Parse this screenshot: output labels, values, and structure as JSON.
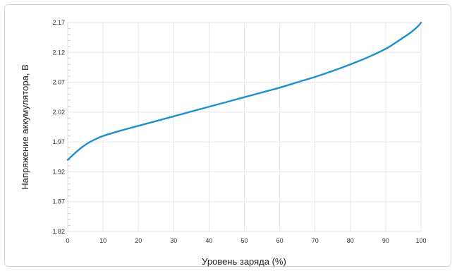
{
  "chart_data": {
    "type": "line",
    "xlabel": "Уровень заряда (%)",
    "ylabel": "Напряжение аккумулятора, В",
    "xlim": [
      0,
      100
    ],
    "ylim": [
      1.82,
      2.17
    ],
    "x_ticks": [
      "0",
      "10",
      "20",
      "30",
      "40",
      "50",
      "60",
      "70",
      "80",
      "90",
      "100"
    ],
    "y_ticks": [
      "1.82",
      "1.87",
      "1.92",
      "1.97",
      "2.02",
      "2.07",
      "2.12",
      "2.17"
    ],
    "grid": true,
    "series": [
      {
        "color": "#1e8fd0",
        "x": [
          0,
          2,
          4,
          6,
          8,
          10,
          15,
          20,
          25,
          30,
          35,
          40,
          45,
          50,
          55,
          60,
          65,
          70,
          75,
          80,
          85,
          90,
          93,
          95,
          97,
          99,
          100
        ],
        "y": [
          1.94,
          1.951,
          1.961,
          1.969,
          1.975,
          1.98,
          1.989,
          1.997,
          2.005,
          2.013,
          2.021,
          2.029,
          2.037,
          2.045,
          2.053,
          2.061,
          2.07,
          2.079,
          2.089,
          2.1,
          2.112,
          2.126,
          2.137,
          2.145,
          2.153,
          2.163,
          2.17
        ]
      }
    ]
  }
}
